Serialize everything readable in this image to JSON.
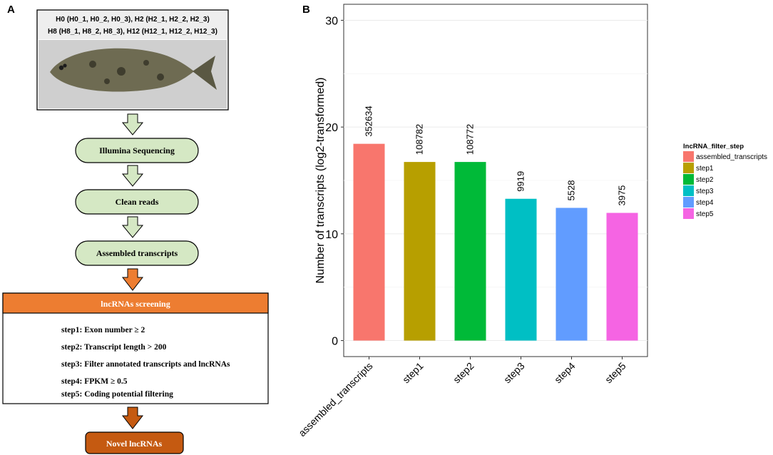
{
  "panels": {
    "left_label": "A",
    "right_label": "B"
  },
  "workflow": {
    "samples_line1": "H0 (H0_1, H0_2, H0_3), H2 (H2_1, H2_2, H2_3)",
    "samples_line2": "H8 (H8_1, H8_2, H8_3), H12 (H12_1, H12_2, H12_3)",
    "photo_subject": "flatfish photograph",
    "steps": [
      "Illumina Sequencing",
      "Clean reads",
      "Assembled transcripts"
    ],
    "screening_title": "lncRNAs screening",
    "filters": [
      "step1: Exon number ≥ 2",
      "step2: Transcript length > 200",
      "step3: Filter annotated transcripts and lncRNAs",
      "step4: FPKM ≥ 0.5",
      "step5: Coding potential filtering"
    ],
    "result": "Novel lncRNAs",
    "colors": {
      "green_fill": "#d5e8c4",
      "orange": "#ed7d31",
      "dark_orange": "#c55a11"
    }
  },
  "chart_data": {
    "type": "bar",
    "categories": [
      "assembled_transcripts",
      "step1",
      "step2",
      "step3",
      "step4",
      "step5"
    ],
    "values": [
      18.43,
      16.73,
      16.73,
      13.28,
      12.43,
      11.96
    ],
    "data_labels": [
      "352634",
      "108782",
      "108772",
      "9919",
      "5528",
      "3975"
    ],
    "colors": [
      "#f8766d",
      "#b79f00",
      "#00ba38",
      "#00bfc4",
      "#619cff",
      "#f564e3"
    ],
    "ylabel": "Number of transcripts (log2-transformed)",
    "xlabel": "",
    "ylim": [
      -1.5,
      31.5
    ],
    "yticks": [
      0,
      10,
      20,
      30
    ],
    "legend_title": "lncRNA_filter_step",
    "legend": [
      "assembled_transcripts",
      "step1",
      "step2",
      "step3",
      "step4",
      "step5"
    ],
    "legend_position": "right"
  }
}
